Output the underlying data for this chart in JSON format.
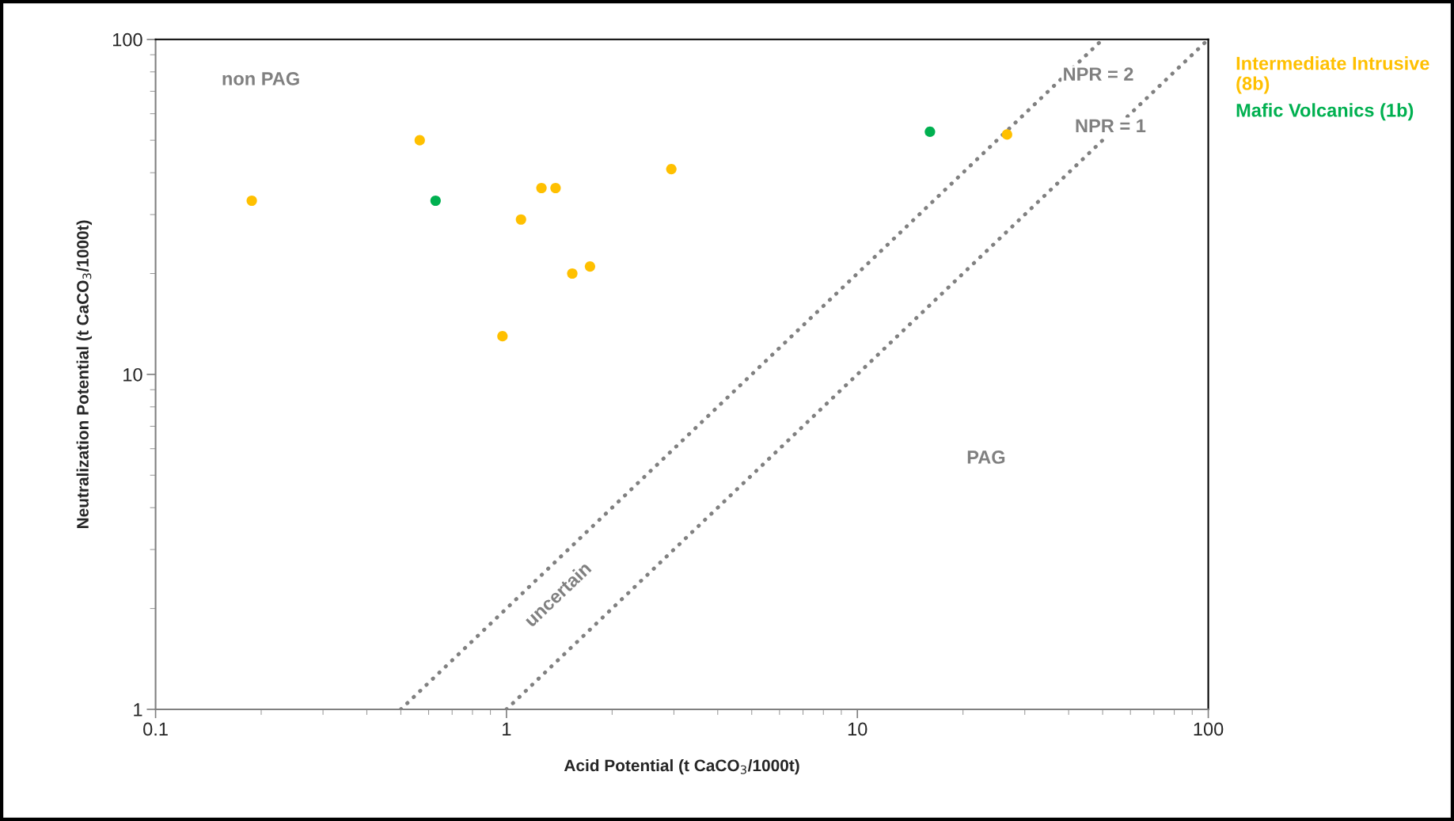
{
  "chart_data": {
    "type": "scatter",
    "xlabel": "Acid Potential (t CaCO$_{3}$/1000t)",
    "ylabel": "Neutralization Potential (t CaCO$_{3}$/1000t)",
    "log": "xy",
    "xlim": [
      0.1,
      100
    ],
    "ylim": [
      1,
      100
    ],
    "xticks": [
      0.1,
      1,
      10,
      100
    ],
    "yticks": [
      1,
      10,
      100
    ],
    "grid": false,
    "legend": "right",
    "marker": "circle",
    "series": [
      {
        "name": "Intermediate Intrusive (8b)",
        "color": "#ffc000",
        "x": [
          0.188,
          0.566,
          1.258,
          1.38,
          1.1,
          0.974,
          1.54,
          1.73,
          2.95,
          26.7
        ],
        "values": [
          33,
          50,
          36,
          36,
          29,
          13,
          20,
          21,
          41,
          52
        ]
      },
      {
        "name": "Mafic Volcanics (1b)",
        "color": "#00b050",
        "x": [
          0.628,
          16.1
        ],
        "values": [
          33,
          53
        ]
      },
      {
        "name": "NPR = 2",
        "type": "line",
        "marker": "none",
        "line_style": "dotted",
        "color": "#808080",
        "x": [
          0.5,
          50
        ],
        "values": [
          1,
          100
        ]
      },
      {
        "name": "NPR = 1",
        "type": "line",
        "marker": "none",
        "line_style": "dotted",
        "color": "#808080",
        "x": [
          1,
          100
        ],
        "values": [
          1,
          100
        ]
      }
    ],
    "annotations": [
      "non PAG",
      "PAG",
      "uncertain"
    ]
  }
}
